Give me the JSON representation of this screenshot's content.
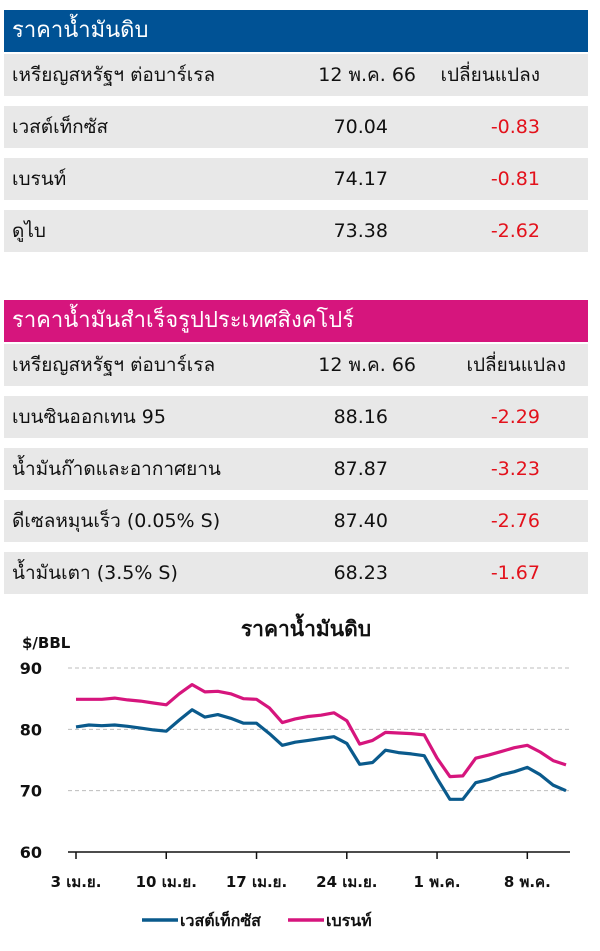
{
  "crude": {
    "title": "ราคาน้ำมันดิบ",
    "color": "#005295",
    "header": {
      "label": "เหรียญสหรัฐฯ ต่อบาร์เรล",
      "date": "12 พ.ค. 66",
      "change": "เปลี่ยนแปลง"
    },
    "rows": [
      {
        "name": "เวสต์เท็กซัส",
        "price": "70.04",
        "change": "-0.83"
      },
      {
        "name": "เบรนท์",
        "price": "74.17",
        "change": "-0.81"
      },
      {
        "name": "ดูไบ",
        "price": "73.38",
        "change": "-2.62"
      }
    ]
  },
  "refined": {
    "title": "ราคาน้ำมันสำเร็จรูปประเทศสิงคโปร์",
    "color": "#d6157d",
    "header": {
      "label": "เหรียญสหรัฐฯ ต่อบาร์เรล",
      "date": "12 พ.ค. 66",
      "change": "เปลี่ยนแปลง"
    },
    "rows": [
      {
        "name": "เบนซินออกเทน 95",
        "price": "88.16",
        "change": "-2.29"
      },
      {
        "name": "น้ำมันก๊าดและอากาศยาน",
        "price": "87.87",
        "change": "-3.23"
      },
      {
        "name": "ดีเซลหมุนเร็ว (0.05% S)",
        "price": "87.40",
        "change": "-2.76"
      },
      {
        "name": "น้ำมันเตา (3.5% S)",
        "price": "68.23",
        "change": "-1.67"
      }
    ]
  },
  "chart_data": {
    "type": "line",
    "title": "ราคาน้ำมันดิบ",
    "ylabel": "$/BBL",
    "ylim": [
      60,
      90
    ],
    "yticks": [
      60,
      70,
      80,
      90
    ],
    "grid": true,
    "legend_position": "bottom",
    "x_tick_labels": [
      "3 เม.ย.",
      "10 เม.ย.",
      "17 เม.ย.",
      "24 เม.ย.",
      "1 พ.ค.",
      "8 พ.ค."
    ],
    "x_tick_day_index": [
      0,
      7,
      14,
      21,
      28,
      35
    ],
    "series": [
      {
        "name": "เวสต์เท็กซัส",
        "color": "#0a5a8c",
        "points": [
          [
            0,
            80.4
          ],
          [
            1,
            80.7
          ],
          [
            2,
            80.6
          ],
          [
            3,
            80.7
          ],
          [
            4,
            80.5
          ],
          [
            5,
            80.2
          ],
          [
            6,
            79.9
          ],
          [
            7,
            79.7
          ],
          [
            8,
            81.5
          ],
          [
            9,
            83.2
          ],
          [
            10,
            82.0
          ],
          [
            11,
            82.4
          ],
          [
            12,
            81.8
          ],
          [
            13,
            81.0
          ],
          [
            14,
            81.0
          ],
          [
            15,
            79.3
          ],
          [
            16,
            77.4
          ],
          [
            17,
            77.9
          ],
          [
            18,
            78.2
          ],
          [
            19,
            78.5
          ],
          [
            20,
            78.8
          ],
          [
            21,
            77.7
          ],
          [
            22,
            74.3
          ],
          [
            23,
            74.6
          ],
          [
            24,
            76.6
          ],
          [
            25,
            76.2
          ],
          [
            26,
            76.0
          ],
          [
            27,
            75.7
          ],
          [
            28,
            72.0
          ],
          [
            29,
            68.6
          ],
          [
            30,
            68.6
          ],
          [
            31,
            71.3
          ],
          [
            32,
            71.8
          ],
          [
            33,
            72.6
          ],
          [
            34,
            73.1
          ],
          [
            35,
            73.8
          ],
          [
            36,
            72.6
          ],
          [
            37,
            70.9
          ],
          [
            38,
            70.0
          ]
        ]
      },
      {
        "name": "เบรนท์",
        "color": "#d6157d",
        "points": [
          [
            0,
            84.9
          ],
          [
            1,
            84.9
          ],
          [
            2,
            84.9
          ],
          [
            3,
            85.1
          ],
          [
            4,
            84.8
          ],
          [
            5,
            84.6
          ],
          [
            6,
            84.3
          ],
          [
            7,
            84.0
          ],
          [
            8,
            85.8
          ],
          [
            9,
            87.3
          ],
          [
            10,
            86.1
          ],
          [
            11,
            86.2
          ],
          [
            12,
            85.8
          ],
          [
            13,
            85.0
          ],
          [
            14,
            84.9
          ],
          [
            15,
            83.5
          ],
          [
            16,
            81.1
          ],
          [
            17,
            81.7
          ],
          [
            18,
            82.1
          ],
          [
            19,
            82.3
          ],
          [
            20,
            82.7
          ],
          [
            21,
            81.4
          ],
          [
            22,
            77.6
          ],
          [
            23,
            78.2
          ],
          [
            24,
            79.5
          ],
          [
            25,
            79.4
          ],
          [
            26,
            79.3
          ],
          [
            27,
            79.1
          ],
          [
            28,
            75.3
          ],
          [
            29,
            72.3
          ],
          [
            30,
            72.4
          ],
          [
            31,
            75.3
          ],
          [
            32,
            75.8
          ],
          [
            33,
            76.4
          ],
          [
            34,
            77.0
          ],
          [
            35,
            77.4
          ],
          [
            36,
            76.3
          ],
          [
            37,
            74.9
          ],
          [
            38,
            74.2
          ]
        ]
      }
    ]
  }
}
